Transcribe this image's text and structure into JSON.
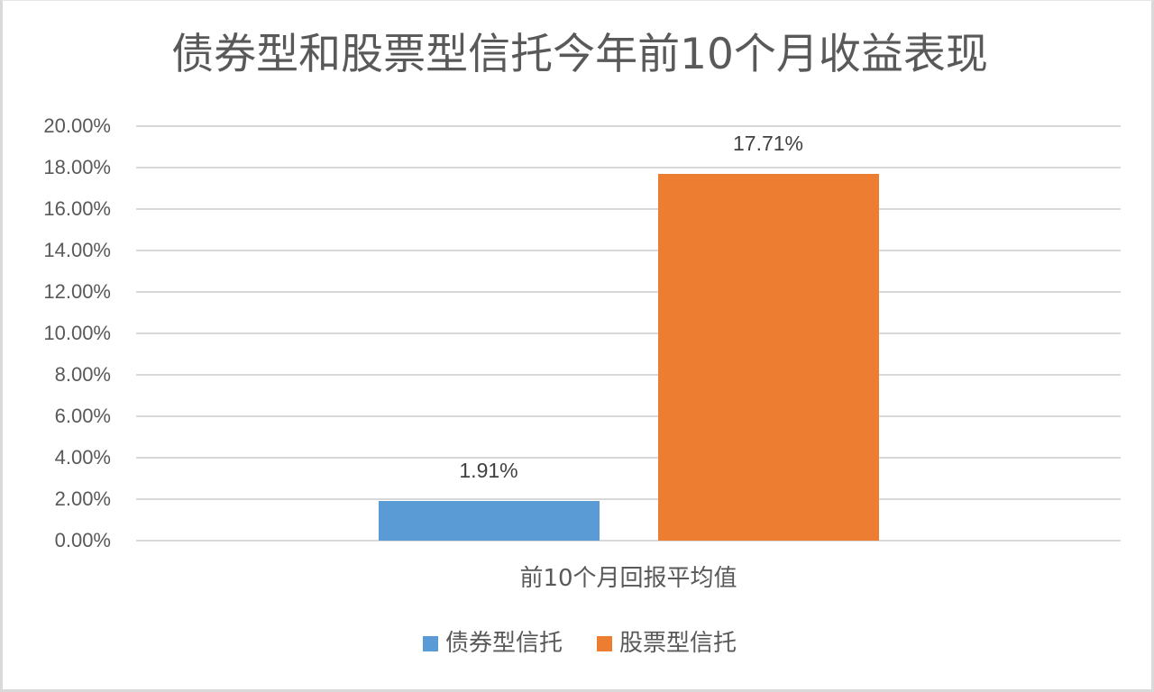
{
  "chart_data": {
    "type": "bar",
    "title": "债券型和股票型信托今年前10个月收益表现",
    "categories": [
      "前10个月回报平均值"
    ],
    "series": [
      {
        "name": "债券型信托",
        "values": [
          1.91
        ],
        "label": "1.91%",
        "color": "#5b9bd5"
      },
      {
        "name": "股票型信托",
        "values": [
          17.71
        ],
        "label": "17.71%",
        "color": "#ed7d31"
      }
    ],
    "xlabel": "",
    "ylabel": "",
    "ylim": [
      0,
      20
    ],
    "y_ticks": [
      "0.00%",
      "2.00%",
      "4.00%",
      "6.00%",
      "8.00%",
      "10.00%",
      "12.00%",
      "14.00%",
      "16.00%",
      "18.00%",
      "20.00%"
    ],
    "y_tick_values": [
      0,
      2,
      4,
      6,
      8,
      10,
      12,
      14,
      16,
      18,
      20
    ],
    "grid": true,
    "legend_position": "bottom",
    "data_labels": true,
    "value_format": "percent"
  },
  "title": "债券型和股票型信托今年前10个月收益表现",
  "x_category_label": "前10个月回报平均值",
  "legend": [
    {
      "label": "债券型信托",
      "color": "#5b9bd5"
    },
    {
      "label": "股票型信托",
      "color": "#ed7d31"
    }
  ],
  "colors": {
    "gridline": "#d9d9d9",
    "text": "#595959",
    "border": "#d9d9d9"
  }
}
